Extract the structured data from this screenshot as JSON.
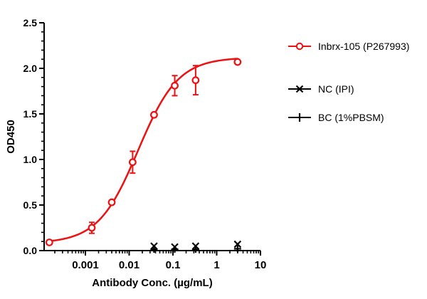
{
  "colors": {
    "accent_red": "#ee1111",
    "black": "#000000",
    "background": "#ffffff"
  },
  "axes": {
    "y": {
      "title": "OD450",
      "min": 0,
      "max": 2.5,
      "major_step": 0.5,
      "minor_step": 0.1,
      "tick_labels": [
        "0.0",
        "0.5",
        "1.0",
        "1.5",
        "2.0",
        "2.5"
      ]
    },
    "x": {
      "title": "Antibody Conc. (µg/mL)",
      "scale": "log10",
      "decade_labels": [
        "0.001",
        "0.01",
        "0.1",
        "1",
        "10"
      ],
      "decade_exponents": [
        -3,
        -2,
        -1,
        0,
        1
      ]
    }
  },
  "chart_data": {
    "type": "scatter",
    "title": "",
    "xlabel": "Antibody Conc. (µg/mL)",
    "ylabel": "OD450",
    "x_scale": "log",
    "xlim": [
      0.000114,
      10
    ],
    "ylim": [
      0,
      2.5
    ],
    "grid": false,
    "legend_position": "right",
    "series": [
      {
        "name": "Inbrx-105 (P267993)",
        "marker": "open-circle",
        "color": "#ee1111",
        "x": [
          0.00015,
          0.0014,
          0.004,
          0.012,
          0.037,
          0.11,
          0.33,
          3
        ],
        "y": [
          0.09,
          0.25,
          0.53,
          0.97,
          1.49,
          1.81,
          1.87,
          2.07
        ],
        "error": [
          0,
          0.06,
          0,
          0.12,
          0,
          0.11,
          0.16,
          0
        ],
        "fit": {
          "model": "4PL",
          "bottom": 0.08,
          "top": 2.12,
          "ec50": 0.016,
          "hill": 0.95,
          "draw_from": 0.00015,
          "draw_to": 3
        }
      },
      {
        "name": "NC (IPI)",
        "marker": "x",
        "color": "#000000",
        "x": [
          0.037,
          0.11,
          0.33,
          3
        ],
        "y": [
          0.05,
          0.04,
          0.05,
          0.07
        ],
        "error": [
          0,
          0,
          0,
          0
        ]
      },
      {
        "name": "BC (1%PBSM)",
        "marker": "plus",
        "color": "#000000",
        "x": [
          0.037,
          0.11,
          0.33,
          3
        ],
        "y": [
          0.015,
          0.015,
          0.015,
          0.02
        ],
        "error": [
          0,
          0,
          0,
          0
        ]
      }
    ]
  },
  "legend": {
    "entries": [
      {
        "label": "Inbrx-105 (P267993)"
      },
      {
        "label": "NC (IPI)"
      },
      {
        "label": "BC (1%PBSM)"
      }
    ]
  }
}
